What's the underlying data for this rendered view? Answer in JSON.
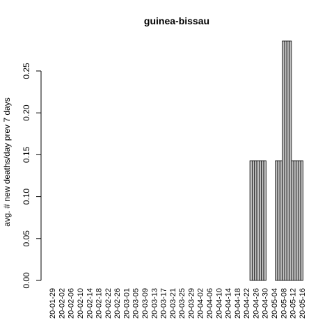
{
  "chart_data": {
    "type": "bar",
    "title": "guinea-bissau",
    "xlabel": "",
    "ylabel": "avg. # new deaths/day prev  7  days",
    "ylim": [
      0,
      0.2857
    ],
    "yticks": [
      0.0,
      0.05,
      0.1,
      0.15,
      0.2,
      0.25
    ],
    "ytick_labels": [
      "0.00",
      "0.05",
      "0.10",
      "0.15",
      "0.20",
      "0.25"
    ],
    "start_date": "2020-01-29",
    "x_tick_labels": [
      "20-01-29",
      "20-02-02",
      "20-02-06",
      "20-02-10",
      "20-02-14",
      "20-02-18",
      "20-02-22",
      "20-02-26",
      "20-03-01",
      "20-03-05",
      "20-03-09",
      "20-03-13",
      "20-03-17",
      "20-03-21",
      "20-03-25",
      "20-03-29",
      "20-04-02",
      "20-04-06",
      "20-04-10",
      "20-04-14",
      "20-04-18",
      "20-04-22",
      "20-04-26",
      "20-04-30",
      "20-05-04",
      "20-05-08",
      "20-05-12",
      "20-05-16"
    ],
    "values": [
      0,
      0,
      0,
      0,
      0,
      0,
      0,
      0,
      0,
      0,
      0,
      0,
      0,
      0,
      0,
      0,
      0,
      0,
      0,
      0,
      0,
      0,
      0,
      0,
      0,
      0,
      0,
      0,
      0,
      0,
      0,
      0,
      0,
      0,
      0,
      0,
      0,
      0,
      0,
      0,
      0,
      0,
      0,
      0,
      0,
      0,
      0,
      0,
      0,
      0,
      0,
      0,
      0,
      0,
      0,
      0,
      0,
      0,
      0,
      0,
      0,
      0,
      0,
      0,
      0,
      0,
      0,
      0,
      0,
      0,
      0,
      0,
      0,
      0,
      0,
      0,
      0,
      0,
      0,
      0,
      0,
      0,
      0,
      0,
      0,
      0,
      0.142857,
      0.142857,
      0.142857,
      0.142857,
      0.142857,
      0.142857,
      0.142857,
      0,
      0,
      0,
      0,
      0.142857,
      0.142857,
      0.142857,
      0.285714,
      0.285714,
      0.285714,
      0.285714,
      0.142857,
      0.142857,
      0.142857,
      0.142857,
      0.142857
    ],
    "bar_fill": "#bebebe",
    "bar_stroke": "#000000"
  }
}
